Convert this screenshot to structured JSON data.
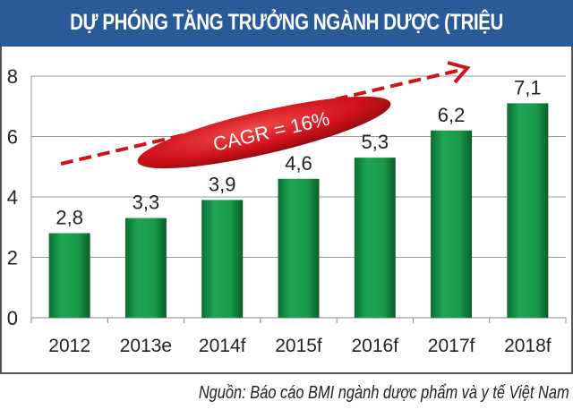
{
  "chart_data": {
    "type": "bar",
    "title": "DỰ PHÓNG TĂNG TRƯỞNG NGÀNH DƯỢC (TRIỆU USD)",
    "categories": [
      "2012",
      "2013e",
      "2014f",
      "2015f",
      "2016f",
      "2017f",
      "2018f"
    ],
    "values": [
      2.8,
      3.3,
      3.9,
      4.6,
      5.3,
      6.2,
      7.1
    ],
    "data_labels": [
      "2,8",
      "3,3",
      "3,9",
      "4,6",
      "5,3",
      "6,2",
      "7,1"
    ],
    "xlabel": "",
    "ylabel": "",
    "ylim": [
      0,
      8
    ],
    "yticks": [
      0,
      2,
      4,
      6,
      8
    ],
    "grid": true,
    "bar_color": "#1a9a4a",
    "annotation": {
      "text": "CAGR = 16%",
      "color": "#d0121b"
    }
  },
  "source": "Nguồn: Báo cáo BMI ngành dược phẩm và y tế Việt Nam",
  "colors": {
    "title_bar": "#2a5b98"
  }
}
